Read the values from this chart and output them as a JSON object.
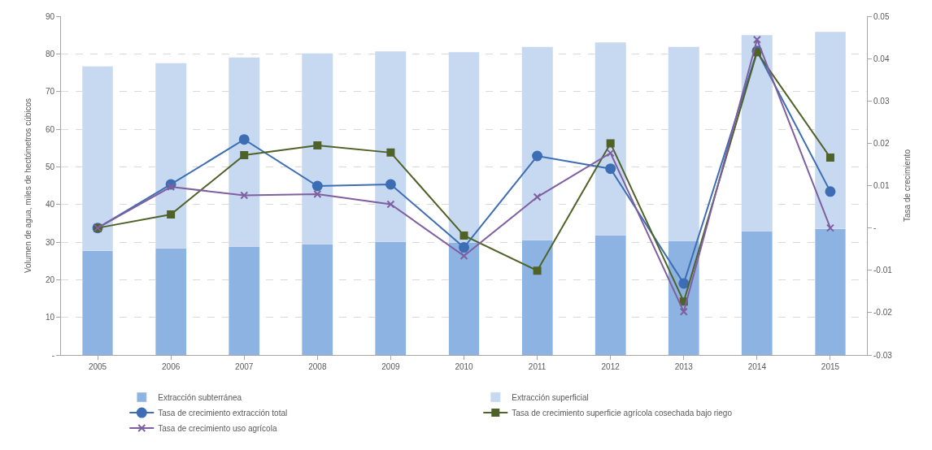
{
  "chart_data": {
    "type": "bar",
    "stacked": true,
    "ylabel": "Volumen de agua, miles de hectómetros cúbicos",
    "y2label": "Tasa de crecimiento",
    "categories": [
      "2005",
      "2006",
      "2007",
      "2008",
      "2009",
      "2010",
      "2011",
      "2012",
      "2013",
      "2014",
      "2015"
    ],
    "series": [
      {
        "name": "Extracción subterránea",
        "color": "#8db3e2",
        "values": [
          27.7,
          28.3,
          28.9,
          29.5,
          30.2,
          29.9,
          30.6,
          31.9,
          30.4,
          33.0,
          33.5
        ]
      },
      {
        "name": "Extracción superficial",
        "color": "#c6d9f1",
        "values": [
          49.0,
          49.2,
          50.1,
          50.6,
          50.5,
          50.5,
          51.2,
          51.1,
          51.4,
          52.0,
          52.3
        ]
      },
      {
        "name": "Tasa de crecimiento extracción total",
        "type": "line",
        "axis": "y2",
        "marker": "circle",
        "color": "#3d6eb4",
        "values": [
          0.0,
          0.0103,
          0.0209,
          0.0099,
          0.0103,
          -0.0046,
          0.017,
          0.014,
          -0.0131,
          0.0418,
          0.0086
        ]
      },
      {
        "name": "Tasa de crecimiento superficie agrícola cosechada bajo riego",
        "type": "line",
        "axis": "y2",
        "marker": "square",
        "color": "#4f6228",
        "values": [
          0.0,
          0.0032,
          0.0172,
          0.0195,
          0.0178,
          -0.0018,
          -0.0101,
          0.02,
          -0.0174,
          0.0415,
          0.0166
        ]
      },
      {
        "name": "Tasa de crecimiento uso agrícola",
        "type": "line",
        "axis": "y2",
        "marker": "cross",
        "color": "#7f5fa0",
        "values": [
          0.0,
          0.0097,
          0.0077,
          0.008,
          0.0056,
          -0.0066,
          0.0073,
          0.0177,
          -0.0198,
          0.0445,
          0.0
        ]
      }
    ],
    "ylim": [
      0,
      90
    ],
    "yticks": [
      {
        "value": 0,
        "label": "-"
      },
      10,
      20,
      30,
      40,
      50,
      60,
      70,
      80,
      90
    ],
    "y2lim": [
      -0.03,
      0.05
    ],
    "y2ticks": [
      -0.03,
      -0.02,
      -0.01,
      {
        "value": 0,
        "label": "-"
      },
      0.01,
      0.02,
      0.03,
      0.04,
      0.05
    ],
    "grid": "y",
    "legend": "bottom",
    "line_style": "solid"
  }
}
